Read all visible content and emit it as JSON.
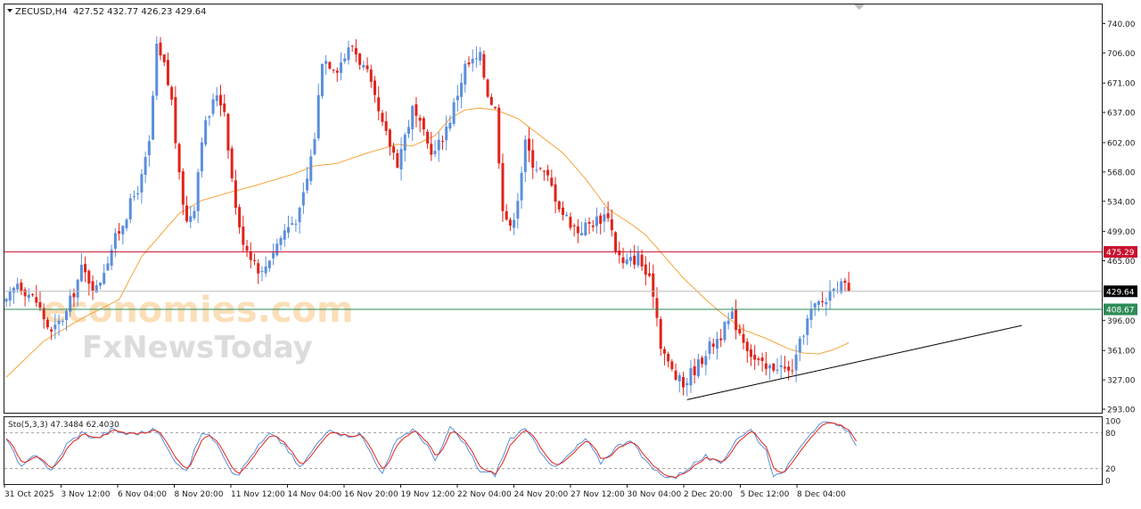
{
  "header": {
    "symbol": "ZECUSD,H4",
    "ohlc": "427.52 432.77 426.23 429.64"
  },
  "indicator": {
    "label": "Sto(5,3,3) 47.3484 62.4030",
    "scale_ticks": [
      "100",
      "80",
      "20",
      "0"
    ],
    "levels": [
      80,
      20
    ]
  },
  "watermark": {
    "line1": "economies.com",
    "line2": "FxNewsToday"
  },
  "price_labels": {
    "resistance": "475.29",
    "current": "429.64",
    "support": "408.67"
  },
  "colors": {
    "bull": "#5b8fdb",
    "bear": "#e2231a",
    "ma": "#f5a43a",
    "resistance": "#c8102e",
    "support": "#2e8b57",
    "trendline": "#000000",
    "stoch_main": "#5b8fdb",
    "stoch_signal": "#e2231a"
  },
  "chart_data": {
    "type": "candlestick",
    "title": "ZECUSD,H4",
    "y_ticks": [
      740,
      706,
      671,
      637,
      602,
      568,
      534,
      499,
      465,
      396,
      361,
      327,
      293
    ],
    "ylim": [
      293,
      758
    ],
    "x_ticks": [
      "31 Oct 2025",
      "3 Nov 12:00",
      "6 Nov 04:00",
      "8 Nov 20:00",
      "11 Nov 12:00",
      "14 Nov 04:00",
      "16 Nov 20:00",
      "19 Nov 12:00",
      "22 Nov 04:00",
      "24 Nov 20:00",
      "27 Nov 12:00",
      "30 Nov 04:00",
      "2 Dec 20:00",
      "5 Dec 12:00",
      "8 Dec 04:00"
    ],
    "horizontal_lines": [
      {
        "price": 475.29,
        "style": "resistance"
      },
      {
        "price": 429.64,
        "style": "current"
      },
      {
        "price": 408.67,
        "style": "support"
      }
    ],
    "trendline": {
      "from": {
        "bar": 181,
        "price": 304
      },
      "to": {
        "bar": 270,
        "price": 390
      }
    },
    "price_anchors": [
      [
        0,
        415
      ],
      [
        3,
        440
      ],
      [
        8,
        418
      ],
      [
        12,
        380
      ],
      [
        16,
        405
      ],
      [
        20,
        455
      ],
      [
        24,
        432
      ],
      [
        28,
        480
      ],
      [
        32,
        520
      ],
      [
        36,
        560
      ],
      [
        38,
        600
      ],
      [
        40,
        710
      ],
      [
        42,
        690
      ],
      [
        44,
        650
      ],
      [
        46,
        560
      ],
      [
        48,
        510
      ],
      [
        50,
        530
      ],
      [
        52,
        610
      ],
      [
        56,
        660
      ],
      [
        58,
        640
      ],
      [
        60,
        560
      ],
      [
        62,
        500
      ],
      [
        64,
        480
      ],
      [
        68,
        450
      ],
      [
        70,
        470
      ],
      [
        74,
        500
      ],
      [
        78,
        520
      ],
      [
        80,
        560
      ],
      [
        82,
        610
      ],
      [
        84,
        700
      ],
      [
        88,
        690
      ],
      [
        92,
        715
      ],
      [
        96,
        680
      ],
      [
        100,
        620
      ],
      [
        104,
        580
      ],
      [
        108,
        640
      ],
      [
        112,
        600
      ],
      [
        114,
        590
      ],
      [
        118,
        630
      ],
      [
        122,
        690
      ],
      [
        126,
        700
      ],
      [
        128,
        660
      ],
      [
        130,
        640
      ],
      [
        132,
        530
      ],
      [
        134,
        500
      ],
      [
        136,
        540
      ],
      [
        138,
        600
      ],
      [
        140,
        580
      ],
      [
        144,
        560
      ],
      [
        148,
        520
      ],
      [
        152,
        500
      ],
      [
        156,
        510
      ],
      [
        160,
        520
      ],
      [
        162,
        480
      ],
      [
        164,
        460
      ],
      [
        168,
        470
      ],
      [
        170,
        450
      ],
      [
        172,
        430
      ],
      [
        174,
        370
      ],
      [
        176,
        345
      ],
      [
        178,
        330
      ],
      [
        180,
        320
      ],
      [
        182,
        335
      ],
      [
        184,
        345
      ],
      [
        186,
        360
      ],
      [
        190,
        380
      ],
      [
        193,
        400
      ],
      [
        196,
        375
      ],
      [
        199,
        350
      ],
      [
        202,
        338
      ],
      [
        205,
        345
      ],
      [
        208,
        335
      ],
      [
        210,
        350
      ],
      [
        212,
        385
      ],
      [
        214,
        405
      ],
      [
        216,
        415
      ],
      [
        218,
        420
      ],
      [
        220,
        440
      ],
      [
        222,
        435
      ],
      [
        224,
        429.64
      ]
    ],
    "ma_anchors": [
      [
        0,
        330
      ],
      [
        10,
        372
      ],
      [
        20,
        398
      ],
      [
        30,
        420
      ],
      [
        36,
        470
      ],
      [
        40,
        490
      ],
      [
        46,
        520
      ],
      [
        52,
        535
      ],
      [
        60,
        545
      ],
      [
        66,
        552
      ],
      [
        76,
        565
      ],
      [
        82,
        575
      ],
      [
        88,
        578
      ],
      [
        96,
        590
      ],
      [
        104,
        600
      ],
      [
        108,
        598
      ],
      [
        114,
        610
      ],
      [
        118,
        630
      ],
      [
        122,
        640
      ],
      [
        126,
        642
      ],
      [
        130,
        640
      ],
      [
        136,
        630
      ],
      [
        142,
        610
      ],
      [
        148,
        590
      ],
      [
        154,
        560
      ],
      [
        160,
        525
      ],
      [
        166,
        508
      ],
      [
        170,
        495
      ],
      [
        176,
        465
      ],
      [
        180,
        445
      ],
      [
        186,
        420
      ],
      [
        190,
        405
      ],
      [
        196,
        385
      ],
      [
        202,
        375
      ],
      [
        208,
        363
      ],
      [
        212,
        358
      ],
      [
        216,
        357
      ],
      [
        220,
        362
      ],
      [
        224,
        370
      ]
    ],
    "stoch_anchors": [
      [
        0,
        70
      ],
      [
        4,
        20
      ],
      [
        8,
        45
      ],
      [
        12,
        15
      ],
      [
        16,
        60
      ],
      [
        20,
        80
      ],
      [
        24,
        70
      ],
      [
        28,
        85
      ],
      [
        32,
        78
      ],
      [
        36,
        80
      ],
      [
        40,
        85
      ],
      [
        44,
        40
      ],
      [
        48,
        15
      ],
      [
        52,
        82
      ],
      [
        56,
        65
      ],
      [
        60,
        15
      ],
      [
        62,
        12
      ],
      [
        66,
        50
      ],
      [
        70,
        78
      ],
      [
        74,
        60
      ],
      [
        78,
        20
      ],
      [
        82,
        55
      ],
      [
        86,
        88
      ],
      [
        90,
        75
      ],
      [
        94,
        78
      ],
      [
        98,
        35
      ],
      [
        100,
        10
      ],
      [
        104,
        70
      ],
      [
        108,
        85
      ],
      [
        112,
        60
      ],
      [
        114,
        30
      ],
      [
        118,
        88
      ],
      [
        122,
        60
      ],
      [
        126,
        15
      ],
      [
        130,
        10
      ],
      [
        134,
        70
      ],
      [
        138,
        85
      ],
      [
        142,
        50
      ],
      [
        146,
        20
      ],
      [
        150,
        45
      ],
      [
        154,
        70
      ],
      [
        158,
        30
      ],
      [
        162,
        55
      ],
      [
        166,
        70
      ],
      [
        170,
        30
      ],
      [
        174,
        10
      ],
      [
        178,
        5
      ],
      [
        182,
        25
      ],
      [
        186,
        40
      ],
      [
        190,
        25
      ],
      [
        194,
        70
      ],
      [
        198,
        85
      ],
      [
        202,
        50
      ],
      [
        204,
        10
      ],
      [
        206,
        8
      ],
      [
        210,
        50
      ],
      [
        214,
        82
      ],
      [
        218,
        98
      ],
      [
        222,
        88
      ],
      [
        224,
        80
      ],
      [
        226,
        62
      ]
    ]
  }
}
